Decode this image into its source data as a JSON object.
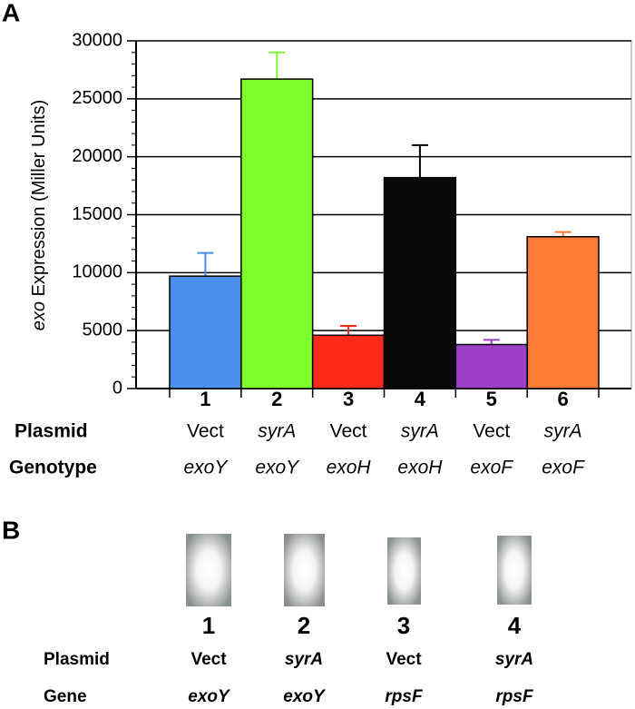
{
  "chart_data": {
    "type": "bar",
    "panel_label": "A",
    "y_label": {
      "italic": "exo",
      "text": "Expression (Miller Units)"
    },
    "categories": [
      "1",
      "2",
      "3",
      "4",
      "5",
      "6"
    ],
    "values": [
      9700,
      26700,
      4600,
      18200,
      3800,
      13100
    ],
    "errors": [
      2000,
      2300,
      800,
      2800,
      400,
      400
    ],
    "colors": [
      "#4a8ff0",
      "#7dff2e",
      "#ff2a1a",
      "#0a0a0a",
      "#9b3fc6",
      "#ff7a35"
    ],
    "ylim": [
      0,
      30000
    ],
    "yticks": [
      0,
      5000,
      10000,
      15000,
      20000,
      25000,
      30000
    ],
    "grid": true,
    "rows": [
      {
        "label": "Plasmid",
        "cells": [
          "Vect",
          "syrA",
          "Vect",
          "syrA",
          "Vect",
          "syrA"
        ],
        "italic": [
          false,
          true,
          false,
          true,
          false,
          true
        ]
      },
      {
        "label": "Genotype",
        "cells": [
          "exoY",
          "exoY",
          "exoH",
          "exoH",
          "exoF",
          "exoF"
        ],
        "italic": [
          true,
          true,
          true,
          true,
          true,
          true
        ]
      }
    ]
  },
  "panel_b": {
    "label": "B",
    "lanes": [
      "1",
      "2",
      "3",
      "4"
    ],
    "rows": [
      {
        "label": "Plasmid",
        "cells": [
          "Vect",
          "syrA",
          "Vect",
          "syrA"
        ],
        "italic": [
          false,
          true,
          false,
          true
        ]
      },
      {
        "label": "Gene",
        "cells": [
          "exoY",
          "exoY",
          "rpsF",
          "rpsF"
        ],
        "italic": [
          true,
          true,
          true,
          true
        ]
      }
    ]
  }
}
